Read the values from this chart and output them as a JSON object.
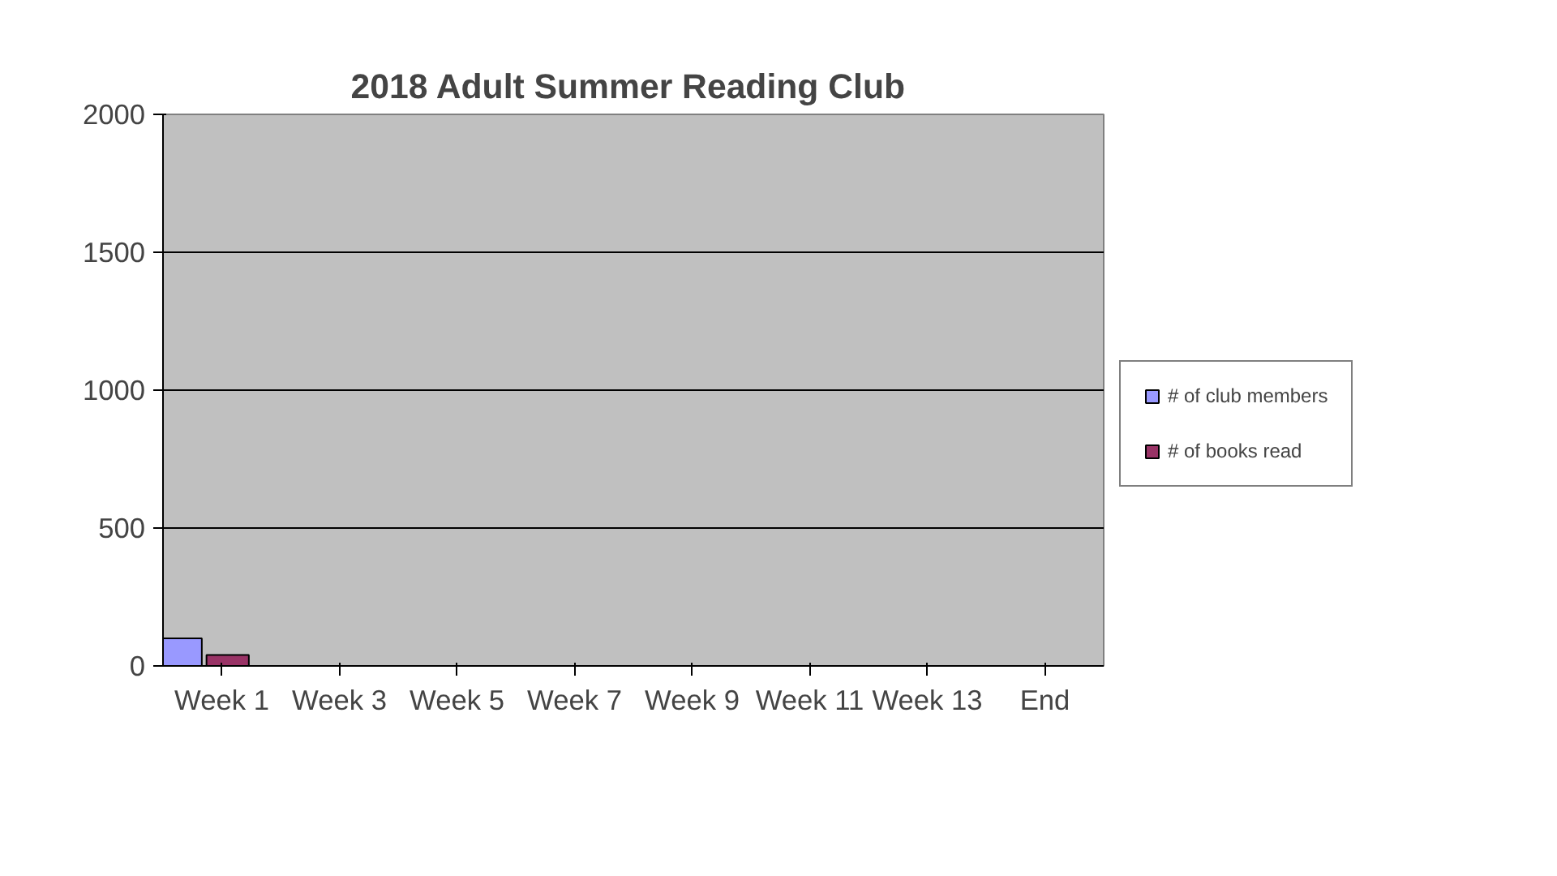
{
  "chart_data": {
    "type": "bar",
    "title": "2018 Adult  Summer Reading Club",
    "categories": [
      "Week 1",
      "Week 3",
      "Week 5",
      "Week 7",
      "Week 9",
      "Week 11",
      "Week 13",
      "End"
    ],
    "series": [
      {
        "name": "# of club members",
        "color": "#9999ff",
        "values": [
          100,
          null,
          null,
          null,
          null,
          null,
          null,
          null
        ]
      },
      {
        "name": "# of books read",
        "color": "#993366",
        "values": [
          40,
          null,
          null,
          null,
          null,
          null,
          null,
          null
        ]
      }
    ],
    "ylim": [
      0,
      2000
    ],
    "yticks": [
      0,
      500,
      1000,
      1500,
      2000
    ],
    "grid": "y",
    "legend": "right"
  }
}
